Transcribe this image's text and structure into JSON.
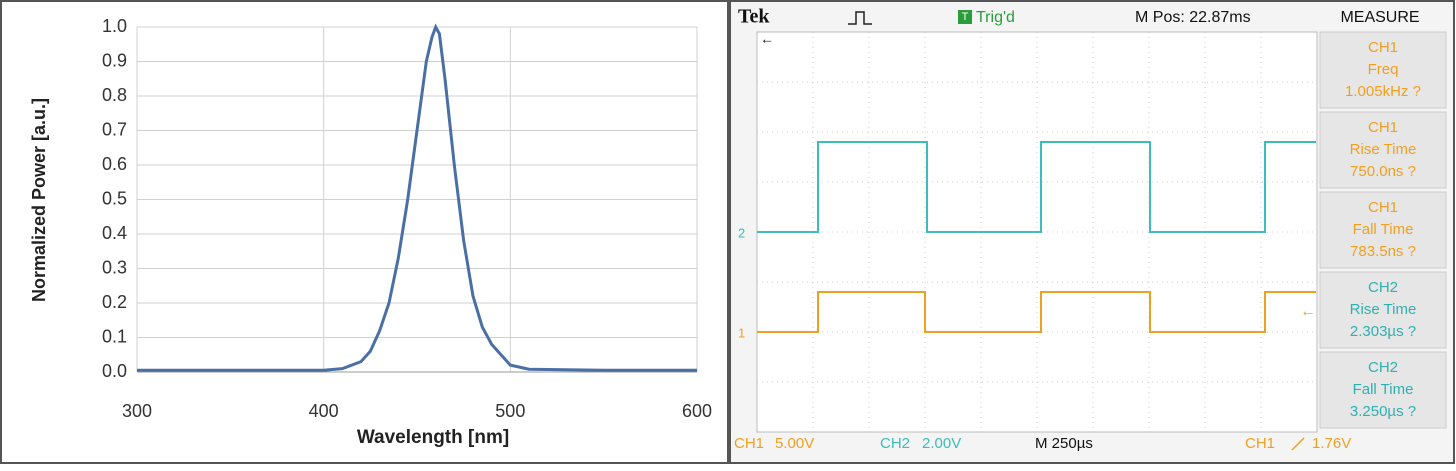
{
  "chart_data": {
    "type": "line",
    "xlabel": "Wavelength [nm]",
    "ylabel": "Normalized Power [a.u.]",
    "x": [
      300,
      400,
      410,
      420,
      425,
      430,
      435,
      440,
      445,
      450,
      455,
      458,
      460,
      462,
      465,
      470,
      475,
      480,
      485,
      490,
      495,
      500,
      510,
      550,
      600
    ],
    "values": [
      0.005,
      0.005,
      0.01,
      0.03,
      0.06,
      0.12,
      0.2,
      0.33,
      0.5,
      0.7,
      0.9,
      0.97,
      1.0,
      0.98,
      0.85,
      0.6,
      0.38,
      0.22,
      0.13,
      0.08,
      0.05,
      0.02,
      0.008,
      0.005,
      0.005
    ],
    "color": "#4a6fa5",
    "xlim": [
      300,
      600
    ],
    "xticks": [
      300,
      400,
      500,
      600
    ],
    "ylim": [
      0,
      1
    ],
    "yticks": [
      {
        "value": 0,
        "label": "0.0"
      },
      0.1,
      0.2,
      0.3,
      0.4,
      0.5,
      0.6,
      0.7,
      0.8,
      0.9,
      {
        "value": 1,
        "label": "1.0"
      }
    ],
    "grid": true
  },
  "scope": {
    "brand": "Tek",
    "trigger_icon": "T",
    "trigger": "Trig'd",
    "position": "M Pos: 22.87ms",
    "menu": "MEASURE",
    "measurements": [
      {
        "channel": "CH1",
        "name": "Freq",
        "value": "1.005kHz ?"
      },
      {
        "channel": "CH1",
        "name": "Rise Time",
        "value": "750.0ns ?"
      },
      {
        "channel": "CH1",
        "name": "Fall Time",
        "value": "783.5ns ?"
      },
      {
        "channel": "CH2",
        "name": "Rise Time",
        "value": "2.303µs ?"
      },
      {
        "channel": "CH2",
        "name": "Fall Time",
        "value": "3.250µs ?"
      }
    ],
    "markers": [
      "2",
      "1"
    ],
    "footer": {
      "ch1": "CH1",
      "ch1_scale": "5.00V",
      "ch2": "CH2",
      "ch2_scale": "2.00V",
      "time": "M 250µs",
      "trig_channel": "CH1",
      "trig_level": "1.76V"
    }
  }
}
